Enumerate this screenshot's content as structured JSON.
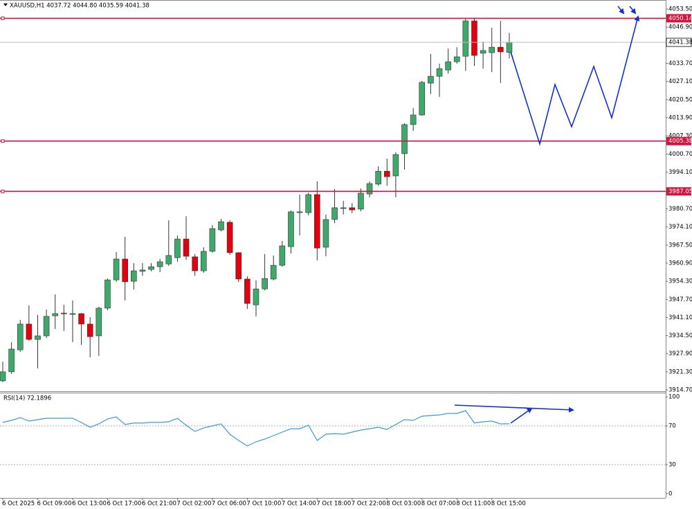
{
  "chart_data": [
    {
      "type": "candlestick",
      "title": "XAUUSD,H1 4037.72 4044.80 4035.59 4041.38",
      "categories": [
        "6 Oct 2025",
        null,
        null,
        null,
        "6 Oct 09:00",
        null,
        null,
        null,
        "6 Oct 13:00",
        null,
        null,
        null,
        "6 Oct 17:00",
        null,
        null,
        null,
        "6 Oct 21:00",
        null,
        null,
        null,
        "7 Oct 02:00",
        null,
        null,
        null,
        "7 Oct 06:00",
        null,
        null,
        null,
        "7 Oct 10:00",
        null,
        null,
        null,
        "7 Oct 14:00",
        null,
        null,
        null,
        "7 Oct 18:00",
        null,
        null,
        null,
        "7 Oct 22:00",
        null,
        null,
        null,
        "8 Oct 03:00",
        null,
        null,
        null,
        "8 Oct 07:00",
        null,
        null,
        null,
        "8 Oct 11:00",
        null,
        null,
        null,
        "8 Oct 15:00",
        null,
        null
      ],
      "open": [
        3918.0,
        3921.3,
        3929.3,
        3938.7,
        3933.1,
        3934.4,
        3941.7,
        3942.7,
        3942.2,
        3942.5,
        3938.7,
        3934.4,
        3944.5,
        3954.8,
        3962.4,
        3954.3,
        3957.9,
        3958.6,
        3959.6,
        3960.6,
        3962.9,
        3969.7,
        3963.2,
        3958.1,
        3965.2,
        3973.0,
        3975.8,
        3964.7,
        3955.1,
        3945.7,
        3951.5,
        3955.1,
        3960.1,
        3966.9,
        3979.3,
        3979.3,
        3985.9,
        3966.7,
        3976.8,
        3980.8,
        3981.1,
        3980.6,
        3986.1,
        3989.7,
        3994.4,
        3992.7,
        4000.8,
        4011.4,
        4014.9,
        4026.5,
        4029.0,
        4031.3,
        4034.3,
        4036.3,
        4049.2,
        4037.4,
        4037.6,
        4039.6,
        4037.72
      ],
      "high": [
        3925.0,
        3932.1,
        3940.2,
        3945.5,
        3942.0,
        3944.0,
        3949.5,
        3945.7,
        3947.3,
        3942.7,
        3941.2,
        3945.0,
        3955.3,
        3964.9,
        3970.5,
        3960.9,
        3960.9,
        3960.9,
        3962.4,
        3976.5,
        3971.0,
        3978.0,
        3964.2,
        3966.7,
        3974.8,
        3977.0,
        3976.5,
        3964.9,
        3956.1,
        3954.6,
        3964.2,
        3963.7,
        3969.0,
        3980.1,
        3985.9,
        3986.6,
        3990.7,
        3978.6,
        3987.9,
        3983.6,
        3982.8,
        3988.1,
        3990.7,
        3996.2,
        3999.0,
        4001.3,
        4011.9,
        4017.4,
        4027.3,
        4037.1,
        4033.6,
        4039.1,
        4039.6,
        4050.0,
        4050.0,
        4041.6,
        4046.7,
        4049.2,
        4044.8
      ],
      "low": [
        3917.5,
        3920.5,
        3928.6,
        3932.6,
        3922.5,
        3933.6,
        3936.9,
        3936.2,
        3932.1,
        3931.1,
        3926.6,
        3927.1,
        3943.7,
        3954.1,
        3947.3,
        3951.3,
        3956.3,
        3957.9,
        3957.6,
        3959.9,
        3961.4,
        3962.1,
        3956.3,
        3957.4,
        3964.7,
        3972.5,
        3963.9,
        3954.1,
        3944.2,
        3941.5,
        3951.0,
        3954.6,
        3959.6,
        3964.4,
        3971.0,
        3978.3,
        3961.9,
        3963.4,
        3975.5,
        3978.6,
        3979.1,
        3979.8,
        3984.9,
        3989.1,
        3989.1,
        3984.9,
        3995.0,
        4009.1,
        4014.6,
        4022.5,
        4021.5,
        4030.0,
        4033.6,
        4031.0,
        4032.8,
        4031.8,
        4030.5,
        4026.5,
        4035.59
      ],
      "close": [
        3921.3,
        3929.6,
        3938.7,
        3933.1,
        3934.4,
        3941.5,
        3942.5,
        3942.5,
        3942.5,
        3938.7,
        3934.1,
        3944.5,
        3954.8,
        3962.4,
        3954.1,
        3958.1,
        3958.4,
        3959.6,
        3961.4,
        3963.7,
        3969.7,
        3963.4,
        3958.1,
        3965.2,
        3973.5,
        3976.0,
        3964.7,
        3955.1,
        3946.2,
        3951.5,
        3955.3,
        3960.1,
        3967.2,
        3979.6,
        3979.6,
        3985.9,
        3966.4,
        3976.8,
        3981.1,
        3981.1,
        3980.3,
        3986.4,
        3989.9,
        3994.4,
        3992.4,
        4000.5,
        4011.4,
        4014.9,
        4026.8,
        4029.0,
        4031.8,
        4034.3,
        4036.1,
        4049.2,
        4036.6,
        4038.4,
        4039.6,
        4037.9,
        4041.38
      ],
      "up_color": "#3fa96b",
      "down_color": "#e3000f",
      "wick_color": "#333333",
      "ylim": [
        3914.2,
        4056.8
      ],
      "yticks": [
        {
          "value": 4053.5,
          "label": "4053.50"
        },
        {
          "value": 4046.9,
          "label": "4046.90"
        },
        {
          "value": 4033.7,
          "label": "4033.70"
        },
        {
          "value": 4027.1,
          "label": "4027.10"
        },
        {
          "value": 4020.5,
          "label": "4020.50"
        },
        {
          "value": 4013.9,
          "label": "4013.90"
        },
        {
          "value": 4007.3,
          "label": "4007.30"
        },
        {
          "value": 4000.7,
          "label": "4000.70"
        },
        {
          "value": 3994.1,
          "label": "3994.10"
        },
        {
          "value": 3980.7,
          "label": "3980.70"
        },
        {
          "value": 3974.1,
          "label": "3974.10"
        },
        {
          "value": 3967.5,
          "label": "3967.50"
        },
        {
          "value": 3960.9,
          "label": "3960.90"
        },
        {
          "value": 3954.3,
          "label": "3954.30"
        },
        {
          "value": 3947.7,
          "label": "3947.70"
        },
        {
          "value": 3941.1,
          "label": "3941.10"
        },
        {
          "value": 3934.5,
          "label": "3934.50"
        },
        {
          "value": 3927.9,
          "label": "3927.90"
        },
        {
          "value": 3921.3,
          "label": "3921.30"
        },
        {
          "value": 3914.7,
          "label": "3914.70"
        }
      ],
      "hlines": [
        4050.14,
        4005.38,
        3987.05
      ],
      "hline_color": "#d4143a",
      "current_price": 4041.38,
      "current_color": "#bbbbbb"
    },
    {
      "type": "line",
      "title": "RSI(14) 72.1896",
      "series": [
        {
          "name": "RSI(14)",
          "color": "#3a9ad9",
          "values": [
            73.6,
            75.7,
            78.6,
            75.0,
            76.4,
            77.9,
            77.9,
            77.9,
            77.9,
            73.6,
            68.6,
            72.1,
            77.1,
            79.3,
            71.4,
            72.9,
            72.9,
            73.6,
            73.6,
            74.3,
            77.9,
            70.7,
            64.3,
            67.9,
            70.0,
            72.1,
            61.4,
            55.0,
            49.3,
            53.6,
            56.4,
            60.0,
            63.6,
            67.1,
            67.1,
            70.7,
            55.0,
            61.4,
            62.1,
            61.4,
            63.6,
            65.7,
            67.1,
            68.6,
            66.4,
            71.4,
            76.4,
            75.7,
            80.0,
            80.7,
            81.4,
            82.9,
            82.9,
            85.7,
            72.9,
            74.3,
            75.0,
            72.1,
            72.1896
          ]
        }
      ],
      "ylim": [
        -4.3,
        104.3
      ],
      "yticks": [
        100,
        70,
        30,
        0
      ],
      "levels": [
        70,
        30
      ]
    }
  ]
}
